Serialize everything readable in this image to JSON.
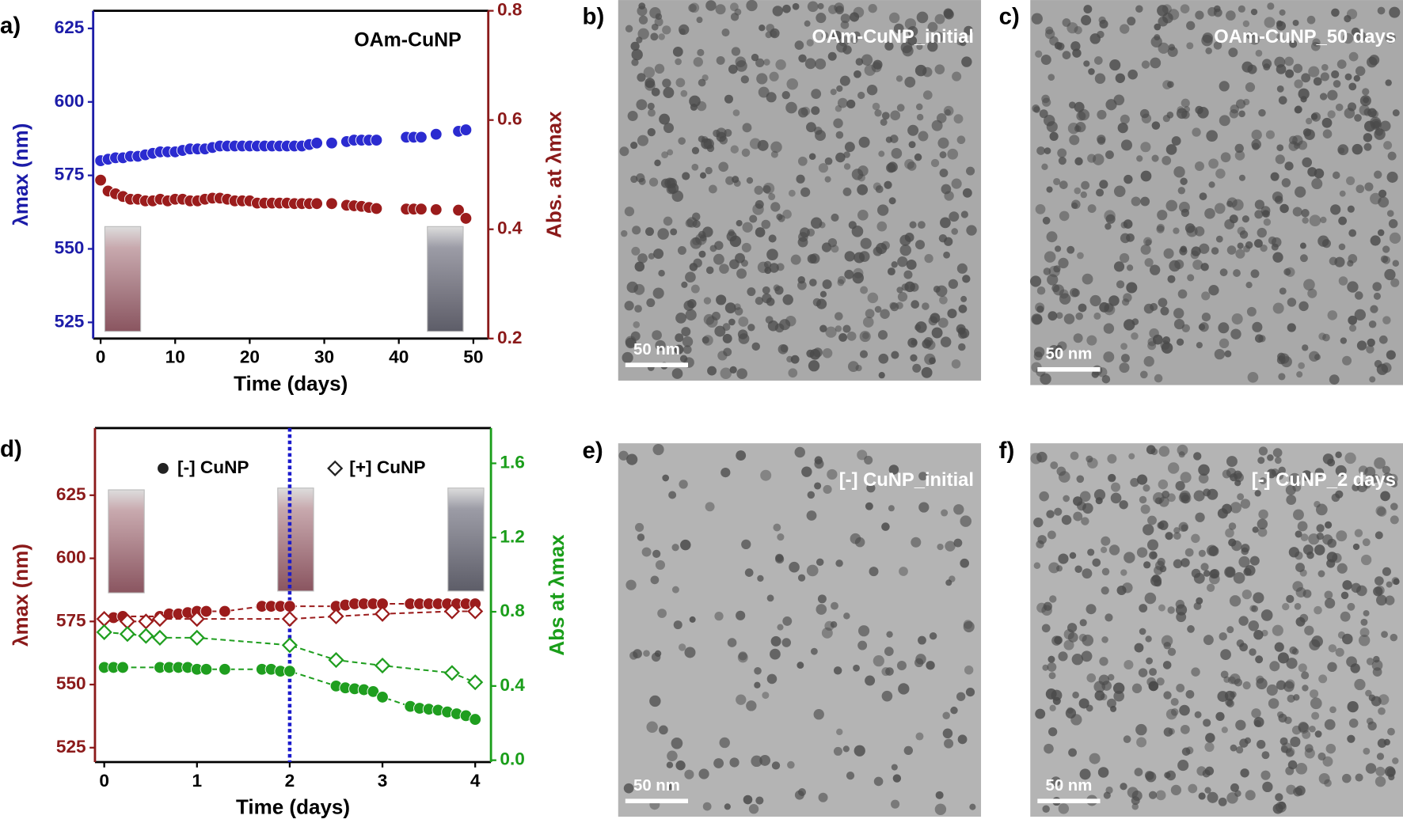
{
  "chart_data": [
    {
      "type": "scatter",
      "panel_label": "a)",
      "annotation": "OAm-CuNP",
      "x_label": "Time (days)",
      "y_label": "λmax (nm)",
      "y2_label": "Abs. at λmax",
      "xlim": [
        -1,
        52
      ],
      "xticks": [
        0,
        10,
        20,
        30,
        40,
        50
      ],
      "ylim": [
        519.5,
        631
      ],
      "yticks": [
        525,
        550,
        575,
        600,
        625
      ],
      "y2lim": [
        0.2,
        0.8
      ],
      "y2ticks": [
        0.2,
        0.4,
        0.6,
        0.8
      ],
      "y_axis_color": "#1c1ca8",
      "y2_axis_color": "#8b1a1a",
      "series": [
        {
          "x": [
            0,
            1,
            2,
            3,
            4,
            5,
            6,
            7,
            8,
            9,
            10,
            11,
            12,
            13,
            14,
            15,
            16,
            17,
            18,
            19,
            20,
            21,
            22,
            23,
            24,
            25,
            26,
            27,
            28,
            29,
            31,
            33,
            34,
            35,
            36,
            37,
            41,
            42,
            43,
            45,
            48,
            49
          ],
          "values": [
            580,
            580.5,
            581,
            581,
            581.5,
            581.5,
            582,
            582.5,
            583,
            583,
            583,
            583.5,
            584,
            584,
            584,
            584.5,
            585,
            585,
            585,
            585,
            585,
            585,
            585,
            585,
            585,
            585,
            585,
            585,
            585.5,
            586,
            586,
            586.5,
            587,
            587,
            587,
            587,
            588,
            588,
            588,
            589,
            590,
            590.5
          ],
          "color": "#2b2bd0",
          "marker": "filled-circle"
        },
        {
          "x": [
            0,
            1,
            2,
            3,
            4,
            5,
            6,
            7,
            8,
            9,
            10,
            11,
            12,
            13,
            14,
            15,
            16,
            17,
            18,
            19,
            20,
            21,
            22,
            23,
            24,
            25,
            26,
            27,
            28,
            29,
            31,
            33,
            34,
            35,
            36,
            37,
            41,
            42,
            43,
            45,
            48,
            49
          ],
          "values": [
            0.49,
            0.47,
            0.465,
            0.46,
            0.455,
            0.455,
            0.452,
            0.452,
            0.455,
            0.452,
            0.455,
            0.455,
            0.452,
            0.452,
            0.455,
            0.457,
            0.457,
            0.455,
            0.452,
            0.452,
            0.452,
            0.448,
            0.448,
            0.448,
            0.448,
            0.448,
            0.447,
            0.447,
            0.447,
            0.447,
            0.447,
            0.444,
            0.443,
            0.442,
            0.44,
            0.438,
            0.437,
            0.437,
            0.437,
            0.436,
            0.435,
            0.42
          ],
          "color": "#9b1c1c",
          "marker": "filled-circle",
          "axis": "y2"
        }
      ]
    },
    {
      "type": "scatter",
      "panel_label": "d)",
      "x_label": "Time (days)",
      "y_label": "λmax (nm)",
      "y2_label": "Abs at λmax",
      "xlim": [
        -0.1,
        4.17
      ],
      "xticks": [
        0,
        1,
        2,
        3,
        4
      ],
      "ylim": [
        519.3,
        651.6
      ],
      "yticks": [
        525,
        550,
        575,
        600,
        625
      ],
      "y2lim": [
        -0.01,
        1.79
      ],
      "y2ticks": [
        {
          "value": 0,
          "label": "0.0"
        },
        0.4,
        0.8,
        1.2,
        1.6
      ],
      "y_axis_color": "#8b1a1a",
      "y2_axis_color": "#1a9e1a",
      "vline_x": 2,
      "vline_color": "#1a1acc",
      "line": "dashed",
      "legend": [
        {
          "label": "[-] CuNP",
          "marker": "filled-circle",
          "color": "#222222"
        },
        {
          "label": "[+] CuNP",
          "marker": "open-diamond",
          "color": "#222222"
        }
      ],
      "series": [
        {
          "x": [
            0,
            0.1,
            0.2,
            0.6,
            0.7,
            0.8,
            0.9,
            1.0,
            1.1,
            1.3,
            1.7,
            1.8,
            1.9,
            2.0,
            2.5,
            2.6,
            2.7,
            2.8,
            2.9,
            3.0,
            3.3,
            3.4,
            3.5,
            3.6,
            3.7,
            3.8,
            3.9,
            4.0
          ],
          "values": [
            576,
            576.5,
            577,
            577,
            578,
            578,
            578.5,
            579,
            579,
            579,
            581,
            581,
            581,
            581,
            581,
            581.5,
            582,
            582,
            582,
            582,
            582,
            582,
            582,
            582,
            582,
            582,
            582,
            582
          ],
          "color": "#9b1c1c",
          "marker": "filled-circle"
        },
        {
          "x": [
            0,
            0.25,
            0.45,
            0.6,
            1.0,
            2.0,
            2.5,
            3.0,
            3.75,
            4.0
          ],
          "values": [
            576,
            575,
            575,
            576,
            576,
            576,
            577,
            578,
            579,
            579
          ],
          "color": "#9b1c1c",
          "marker": "open-diamond"
        },
        {
          "x": [
            0,
            0.1,
            0.2,
            0.6,
            0.7,
            0.8,
            0.9,
            1.0,
            1.1,
            1.3,
            1.7,
            1.8,
            1.9,
            2.0,
            2.5,
            2.6,
            2.7,
            2.8,
            2.9,
            3.0,
            3.3,
            3.4,
            3.5,
            3.6,
            3.7,
            3.8,
            3.9,
            4.0
          ],
          "values": [
            0.5,
            0.5,
            0.5,
            0.5,
            0.5,
            0.5,
            0.5,
            0.49,
            0.49,
            0.49,
            0.49,
            0.49,
            0.48,
            0.48,
            0.4,
            0.39,
            0.385,
            0.38,
            0.37,
            0.34,
            0.29,
            0.28,
            0.275,
            0.27,
            0.26,
            0.25,
            0.24,
            0.22
          ],
          "color": "#1f9e1f",
          "marker": "filled-circle",
          "axis": "y2"
        },
        {
          "x": [
            0,
            0.25,
            0.45,
            0.6,
            1.0,
            2.0,
            2.5,
            3.0,
            3.75,
            4.0
          ],
          "values": [
            0.69,
            0.68,
            0.67,
            0.66,
            0.66,
            0.62,
            0.54,
            0.51,
            0.47,
            0.42
          ],
          "color": "#1f9e1f",
          "marker": "open-diamond",
          "axis": "y2"
        }
      ]
    }
  ],
  "panels": [
    {
      "letter": "b)",
      "label": "OAm-CuNP_initial",
      "scale_bar": "50 nm"
    },
    {
      "letter": "c)",
      "label": "OAm-CuNP_50 days",
      "scale_bar": "50 nm"
    },
    {
      "letter": "e)",
      "label": "[-] CuNP_initial",
      "scale_bar": "50 nm"
    },
    {
      "letter": "f)",
      "label": "[-] CuNP_2 days",
      "scale_bar": "50 nm"
    }
  ]
}
